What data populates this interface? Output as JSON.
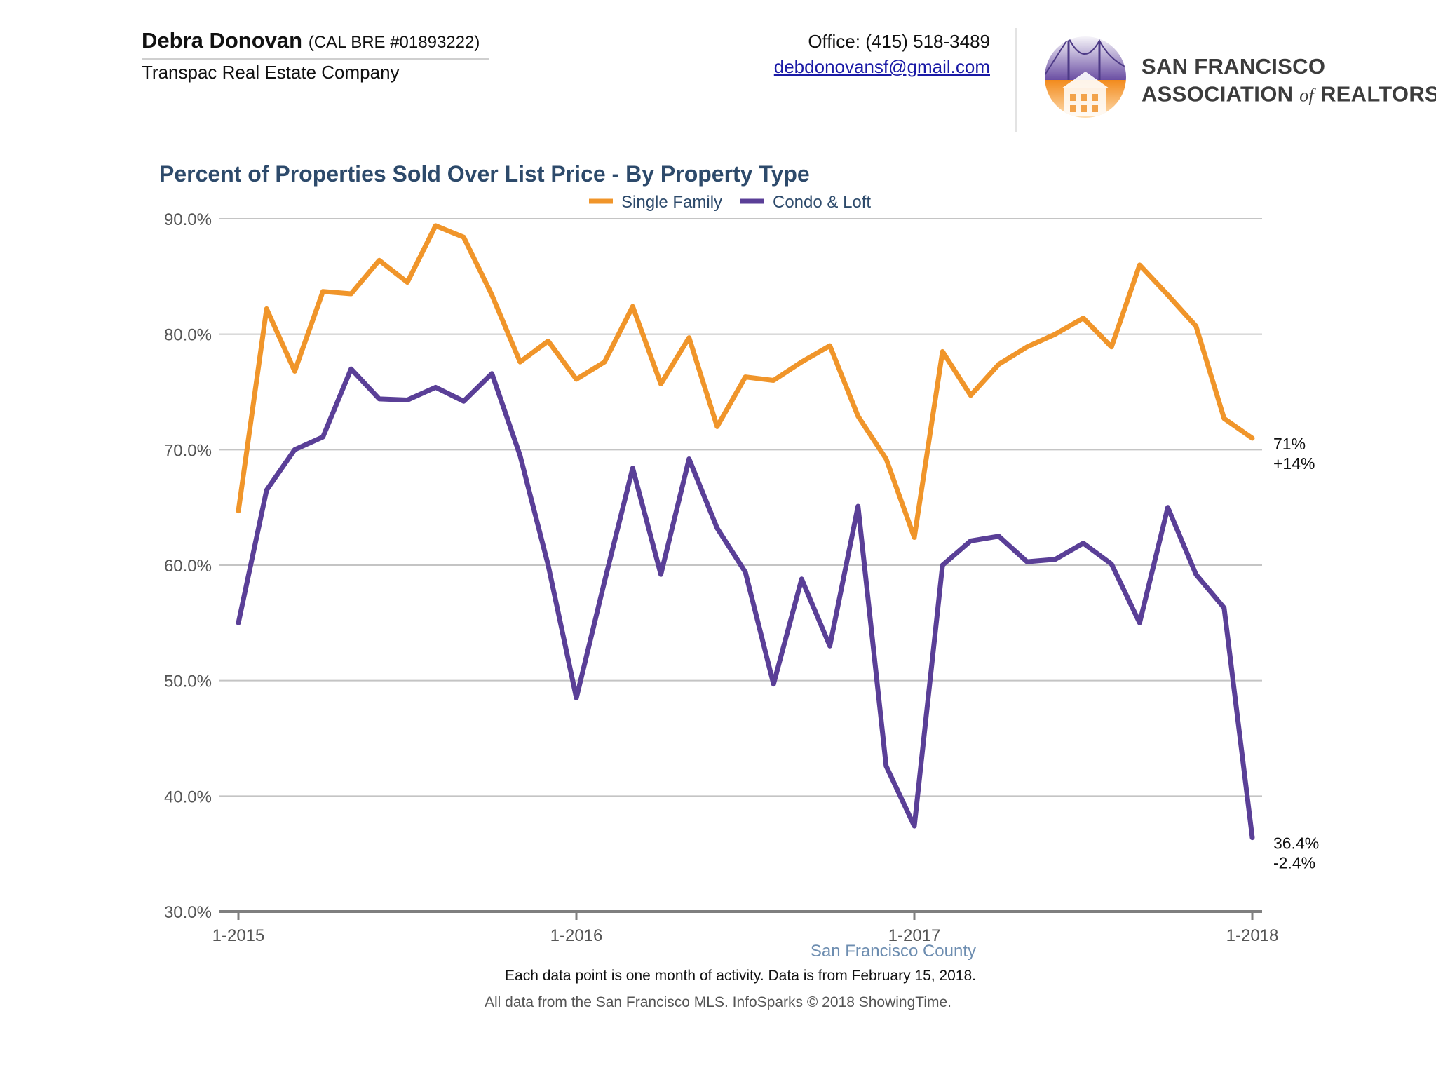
{
  "header": {
    "agent_name": "Debra Donovan",
    "agent_license": "(CAL BRE #01893222)",
    "company": "Transpac Real Estate Company",
    "office_phone": "Office: (415) 518-3489",
    "email": "debdonovansf@gmail.com",
    "logo_text_line1": "SAN FRANCISCO",
    "logo_text_line2_a": "ASSOCIATION",
    "logo_text_line2_of": "of",
    "logo_text_line2_b": "REALTORS",
    "logo_reg": "®"
  },
  "colors": {
    "single_family": "#f0952a",
    "condo_loft": "#5a3f97",
    "title": "#2d4a6b",
    "grid": "#c4c4c4",
    "axis": "#7f7f7f"
  },
  "chart_data": {
    "type": "line",
    "title": "Percent of Properties Sold Over List Price - By Property Type",
    "xlabel": "",
    "ylabel": "",
    "ylim": [
      30,
      90
    ],
    "yticks": [
      "30.0%",
      "40.0%",
      "50.0%",
      "60.0%",
      "70.0%",
      "80.0%",
      "90.0%"
    ],
    "ytick_values": [
      30,
      40,
      50,
      60,
      70,
      80,
      90
    ],
    "xtick_labels": [
      "1-2015",
      "1-2016",
      "1-2017",
      "1-2018"
    ],
    "xtick_index": [
      0,
      12,
      24,
      36
    ],
    "x_start": "2015-01",
    "x_end": "2018-01",
    "grid": true,
    "legend_position": "top-center",
    "series": [
      {
        "name": "Single Family",
        "values": [
          64.7,
          82.2,
          76.8,
          83.7,
          83.5,
          86.4,
          84.5,
          89.4,
          88.4,
          83.4,
          77.6,
          79.4,
          76.1,
          77.6,
          82.4,
          75.7,
          79.7,
          72.0,
          76.3,
          76.0,
          77.6,
          79.0,
          72.9,
          69.2,
          62.4,
          78.5,
          74.7,
          77.4,
          78.9,
          80.0,
          81.4,
          78.9,
          86.0,
          83.4,
          80.7,
          72.7,
          71.0
        ],
        "end_label_value": "71%",
        "end_label_change": "+14%"
      },
      {
        "name": "Condo & Loft",
        "values": [
          55.0,
          66.5,
          70.0,
          71.1,
          77.0,
          74.4,
          74.3,
          75.4,
          74.2,
          76.6,
          69.5,
          60.0,
          48.5,
          58.6,
          68.4,
          59.2,
          69.2,
          63.2,
          59.4,
          49.7,
          58.8,
          53.0,
          65.1,
          42.6,
          37.4,
          60.0,
          62.1,
          62.5,
          60.3,
          60.5,
          61.9,
          60.1,
          55.0,
          65.0,
          59.2,
          56.3,
          36.4
        ],
        "end_label_value": "36.4%",
        "end_label_change": "-2.4%"
      }
    ]
  },
  "footer": {
    "region": "San Francisco County",
    "note": "Each data point is one month of activity. Data is from February 15, 2018.",
    "source": "All data from the San Francisco MLS. InfoSparks © 2018 ShowingTime."
  }
}
